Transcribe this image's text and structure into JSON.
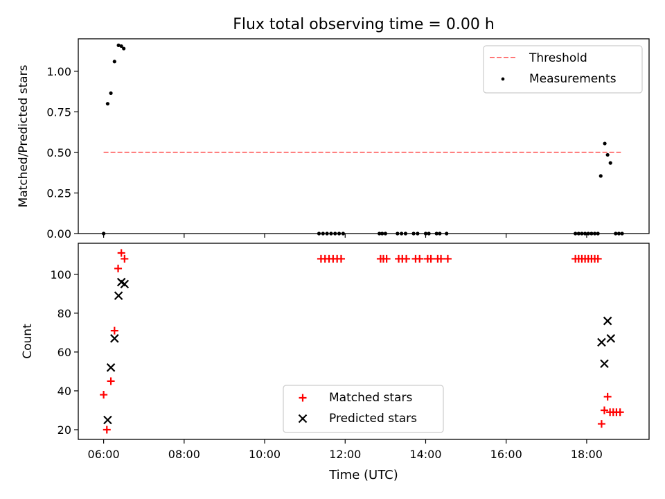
{
  "chart_data": {
    "title": "Flux total observing time = 0.00 h",
    "xlabel": "Time (UTC)",
    "x_unit": "hours (UTC)",
    "xlim": [
      5.37,
      19.55
    ],
    "x_ticks": [
      {
        "value": 6,
        "label": "06:00"
      },
      {
        "value": 8,
        "label": "08:00"
      },
      {
        "value": 10,
        "label": "10:00"
      },
      {
        "value": 12,
        "label": "12:00"
      },
      {
        "value": 14,
        "label": "14:00"
      },
      {
        "value": 16,
        "label": "16:00"
      },
      {
        "value": 18,
        "label": "18:00"
      }
    ],
    "panels": [
      {
        "type": "line+scatter",
        "ylabel": "Matched/Predicted stars",
        "ylim": [
          0.0,
          1.2
        ],
        "y_ticks": [
          {
            "value": 0.0,
            "label": "0.00"
          },
          {
            "value": 0.25,
            "label": "0.25"
          },
          {
            "value": 0.5,
            "label": "0.50"
          },
          {
            "value": 0.75,
            "label": "0.75"
          },
          {
            "value": 1.0,
            "label": "1.00"
          }
        ],
        "legend": {
          "position": "top-right",
          "entries": [
            "Threshold",
            "Measurements"
          ]
        },
        "threshold": {
          "name": "Threshold",
          "value": 0.5,
          "x_range": [
            6.0,
            18.85
          ],
          "color": "#ff7777",
          "style": "dashed"
        },
        "series": [
          {
            "name": "Measurements",
            "color": "#000000",
            "marker": "dot",
            "points": [
              [
                6.0,
                0.0
              ],
              [
                6.1,
                0.8
              ],
              [
                6.18,
                0.865
              ],
              [
                6.27,
                1.06
              ],
              [
                6.37,
                1.16
              ],
              [
                6.44,
                1.155
              ],
              [
                6.5,
                1.14
              ],
              [
                11.35,
                0.0
              ],
              [
                11.45,
                0.0
              ],
              [
                11.55,
                0.0
              ],
              [
                11.65,
                0.0
              ],
              [
                11.75,
                0.0
              ],
              [
                11.85,
                0.0
              ],
              [
                11.95,
                0.0
              ],
              [
                12.85,
                0.0
              ],
              [
                12.92,
                0.0
              ],
              [
                13.0,
                0.0
              ],
              [
                13.3,
                0.0
              ],
              [
                13.4,
                0.0
              ],
              [
                13.5,
                0.0
              ],
              [
                13.7,
                0.0
              ],
              [
                13.8,
                0.0
              ],
              [
                14.0,
                0.0
              ],
              [
                14.08,
                0.0
              ],
              [
                14.27,
                0.0
              ],
              [
                14.35,
                0.0
              ],
              [
                14.52,
                0.0
              ],
              [
                17.72,
                0.0
              ],
              [
                17.8,
                0.0
              ],
              [
                17.88,
                0.0
              ],
              [
                17.96,
                0.0
              ],
              [
                18.04,
                0.0
              ],
              [
                18.12,
                0.0
              ],
              [
                18.2,
                0.0
              ],
              [
                18.28,
                0.0
              ],
              [
                18.35,
                0.355
              ],
              [
                18.45,
                0.555
              ],
              [
                18.52,
                0.485
              ],
              [
                18.59,
                0.435
              ],
              [
                18.72,
                0.0
              ],
              [
                18.8,
                0.0
              ],
              [
                18.88,
                0.0
              ]
            ]
          }
        ]
      },
      {
        "type": "scatter",
        "ylabel": "Count",
        "ylim": [
          15.0,
          116.0
        ],
        "y_ticks": [
          {
            "value": 20,
            "label": "20"
          },
          {
            "value": 40,
            "label": "40"
          },
          {
            "value": 60,
            "label": "60"
          },
          {
            "value": 80,
            "label": "80"
          },
          {
            "value": 100,
            "label": "100"
          }
        ],
        "legend": {
          "position": "bottom-center",
          "entries": [
            "Matched stars",
            "Predicted stars"
          ]
        },
        "series": [
          {
            "name": "Matched stars",
            "color": "#ff0000",
            "marker": "plus",
            "points": [
              [
                6.0,
                38
              ],
              [
                6.08,
                20
              ],
              [
                6.18,
                45
              ],
              [
                6.27,
                71
              ],
              [
                6.36,
                103
              ],
              [
                6.44,
                111
              ],
              [
                6.52,
                108
              ],
              [
                11.4,
                108
              ],
              [
                11.5,
                108
              ],
              [
                11.6,
                108
              ],
              [
                11.7,
                108
              ],
              [
                11.8,
                108
              ],
              [
                11.9,
                108
              ],
              [
                12.88,
                108
              ],
              [
                12.95,
                108
              ],
              [
                13.03,
                108
              ],
              [
                13.33,
                108
              ],
              [
                13.42,
                108
              ],
              [
                13.52,
                108
              ],
              [
                13.75,
                108
              ],
              [
                13.85,
                108
              ],
              [
                14.05,
                108
              ],
              [
                14.13,
                108
              ],
              [
                14.3,
                108
              ],
              [
                14.38,
                108
              ],
              [
                14.55,
                108
              ],
              [
                17.72,
                108
              ],
              [
                17.8,
                108
              ],
              [
                17.88,
                108
              ],
              [
                17.96,
                108
              ],
              [
                18.04,
                108
              ],
              [
                18.12,
                108
              ],
              [
                18.2,
                108
              ],
              [
                18.28,
                108
              ],
              [
                18.37,
                23
              ],
              [
                18.44,
                30
              ],
              [
                18.52,
                37
              ],
              [
                18.58,
                29
              ],
              [
                18.66,
                29
              ],
              [
                18.74,
                29
              ],
              [
                18.83,
                29
              ]
            ]
          },
          {
            "name": "Predicted stars",
            "color": "#000000",
            "marker": "x",
            "points": [
              [
                6.1,
                25
              ],
              [
                6.18,
                52
              ],
              [
                6.27,
                67
              ],
              [
                6.37,
                89
              ],
              [
                6.44,
                96
              ],
              [
                6.52,
                95
              ],
              [
                18.37,
                65
              ],
              [
                18.44,
                54
              ],
              [
                18.52,
                76
              ],
              [
                18.6,
                67
              ]
            ]
          }
        ]
      }
    ]
  }
}
